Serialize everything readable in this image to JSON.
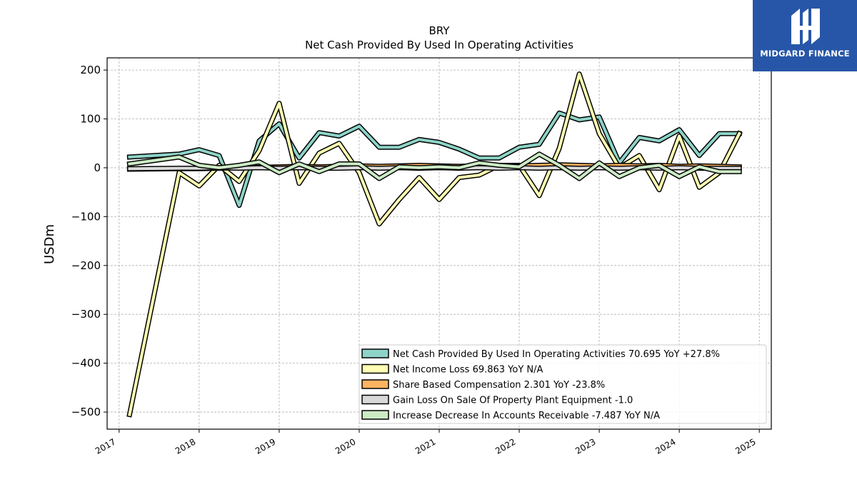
{
  "brand": {
    "name": "MIDGARD FINANCE",
    "background": "#2756a8"
  },
  "chart_data": {
    "type": "line",
    "title": "BRY",
    "subtitle": "Net Cash Provided By Used In Operating Activities",
    "ylabel": "USDm",
    "xlabel": "",
    "xlim": [
      2016.85,
      2025.15
    ],
    "ylim": [
      -535,
      225
    ],
    "x_ticks": [
      "2017",
      "2018",
      "2019",
      "2020",
      "2021",
      "2022",
      "2023",
      "2024",
      "2025"
    ],
    "y_ticks": [
      "200",
      "100",
      "0",
      "−100",
      "−200",
      "−300",
      "−400",
      "−500"
    ],
    "grid": true,
    "legend_position": "lower-right",
    "x": [
      2017.13,
      2017.75,
      2018.0,
      2018.25,
      2018.5,
      2018.75,
      2019.0,
      2019.25,
      2019.5,
      2019.75,
      2020.0,
      2020.25,
      2020.5,
      2020.75,
      2021.0,
      2021.25,
      2021.5,
      2021.75,
      2022.0,
      2022.25,
      2022.5,
      2022.75,
      2023.0,
      2023.25,
      2023.5,
      2023.75,
      2024.0,
      2024.25,
      2024.5,
      2024.75
    ],
    "series": [
      {
        "name": "Net Cash Provided By Used In Operating Activities",
        "legend_label": "Net Cash Provided By Used In Operating Activities  70.695 YoY +27.8%",
        "color": "#8dd3c7",
        "values": [
          22,
          28,
          37,
          25,
          -77,
          55,
          90,
          20,
          72,
          65,
          85,
          42,
          42,
          58,
          52,
          38,
          20,
          20,
          42,
          48,
          112,
          98,
          104,
          10,
          62,
          55,
          78,
          25,
          70,
          70
        ]
      },
      {
        "name": "Net Income Loss",
        "legend_label": "Net Income Loss  69.863 YoY N/A",
        "color": "#ffffb3",
        "values": [
          -505,
          -10,
          -37,
          5,
          -28,
          35,
          132,
          -32,
          30,
          50,
          -10,
          -115,
          -65,
          -20,
          -65,
          -20,
          -15,
          5,
          5,
          -57,
          40,
          192,
          70,
          0,
          25,
          -45,
          65,
          -40,
          -10,
          70
        ]
      },
      {
        "name": "Share Based Compensation",
        "legend_label": "Share Based Compensation  2.301 YoY -23.8%",
        "color": "#fdb462",
        "values": [
          -3,
          -2,
          -2,
          -1,
          0,
          1,
          2,
          3,
          2,
          3,
          4,
          3,
          4,
          5,
          4,
          3,
          4,
          5,
          4,
          5,
          6,
          5,
          4,
          5,
          4,
          5,
          3,
          4,
          3,
          2
        ]
      },
      {
        "name": "Gain Loss On Sale Of Property Plant Equipment",
        "legend_label": "Gain Loss On Sale Of Property Plant Equipment  -1.0",
        "color": "#d9d9d9",
        "values": [
          -2,
          -1,
          -1,
          0,
          -1,
          0,
          -1,
          0,
          -1,
          -1,
          0,
          -1,
          0,
          -1,
          0,
          -1,
          0,
          -1,
          0,
          -1,
          0,
          -1,
          0,
          -1,
          0,
          -1,
          0,
          -1,
          -1,
          -1
        ]
      },
      {
        "name": "Increase Decrease In Accounts Receivable",
        "legend_label": "Increase Decrease In Accounts Receivable  -7.487 YoY N/A",
        "color": "#ccebc5",
        "values": [
          8,
          22,
          5,
          0,
          5,
          12,
          -10,
          8,
          -8,
          8,
          8,
          -22,
          2,
          0,
          2,
          0,
          10,
          5,
          2,
          28,
          5,
          -22,
          10,
          -18,
          0,
          5,
          -18,
          2,
          -8,
          -8
        ]
      }
    ]
  }
}
